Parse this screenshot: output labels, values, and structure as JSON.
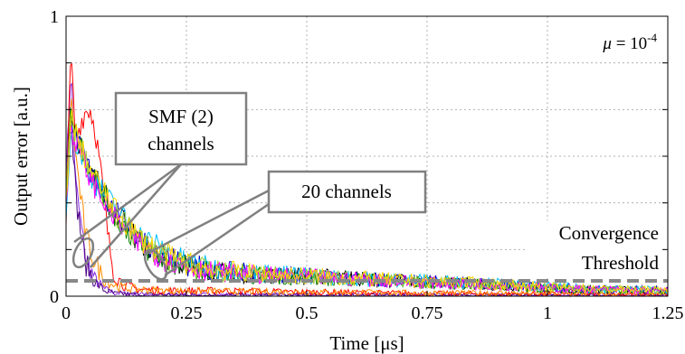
{
  "chart_data": {
    "type": "line",
    "xlabel": "Time [μs]",
    "ylabel": "Output error [a.u.]",
    "xlim": [
      0,
      1.25
    ],
    "ylim": [
      0,
      1
    ],
    "x_ticks": [
      {
        "value": 0,
        "label": "0"
      },
      {
        "value": 0.25,
        "label": "0.25"
      },
      {
        "value": 0.5,
        "label": "0.5"
      },
      {
        "value": 0.75,
        "label": "0.75"
      },
      {
        "value": 1,
        "label": "1"
      },
      {
        "value": 1.25,
        "label": "1.25"
      }
    ],
    "y_ticks": [
      {
        "value": 0,
        "label": "0"
      },
      {
        "value": 1,
        "label": "1"
      }
    ],
    "grid": true,
    "threshold": {
      "value": 0.055,
      "label_line1": "Convergence",
      "label_line2": "Threshold",
      "color": "#888888"
    },
    "mu_label": {
      "symbol": "μ",
      "equals": " = 10",
      "exponent": "-4"
    },
    "annotations": [
      {
        "line1": "SMF (2)",
        "line2": "channels"
      },
      {
        "line1": "20 channels",
        "line2": ""
      }
    ],
    "series_groups": [
      {
        "group": "SMF (2) channels",
        "series": [
          {
            "color": "#8a2be2",
            "x": [
              0,
              0.01,
              0.02,
              0.04,
              0.06,
              0.08,
              0.1,
              0.14,
              0.2,
              0.3,
              0.5,
              0.75,
              1.0,
              1.25
            ],
            "y": [
              0.42,
              0.82,
              0.4,
              0.14,
              0.06,
              0.025,
              0.012,
              0.008,
              0.006,
              0.005,
              0.004,
              0.004,
              0.003,
              0.003
            ]
          },
          {
            "color": "#4b0082",
            "x": [
              0,
              0.01,
              0.02,
              0.04,
              0.06,
              0.08,
              0.1,
              0.14,
              0.2,
              0.3,
              0.5,
              0.75,
              1.0,
              1.25
            ],
            "y": [
              0.35,
              0.7,
              0.36,
              0.12,
              0.05,
              0.02,
              0.01,
              0.007,
              0.005,
              0.004,
              0.004,
              0.003,
              0.003,
              0.003
            ]
          }
        ]
      },
      {
        "group": "20 channels",
        "series": [
          {
            "color": "#ff0000",
            "x": [
              0,
              0.01,
              0.02,
              0.03,
              0.04,
              0.05,
              0.06,
              0.07,
              0.08,
              0.09,
              0.1,
              0.12,
              0.15,
              0.2,
              0.3,
              0.5,
              0.75,
              1.0,
              1.25
            ],
            "y": [
              0.3,
              0.87,
              0.55,
              0.62,
              0.66,
              0.67,
              0.6,
              0.48,
              0.32,
              0.18,
              0.08,
              0.04,
              0.025,
              0.02,
              0.02,
              0.015,
              0.01,
              0.008,
              0.006
            ]
          },
          {
            "color": "#ff8c00",
            "x": [
              0,
              0.01,
              0.02,
              0.04,
              0.06,
              0.08,
              0.1,
              0.12,
              0.15,
              0.2,
              0.3,
              0.5,
              0.75,
              1.0,
              1.25
            ],
            "y": [
              0.35,
              0.72,
              0.5,
              0.22,
              0.12,
              0.06,
              0.04,
              0.03,
              0.025,
              0.02,
              0.018,
              0.015,
              0.012,
              0.01,
              0.008
            ]
          },
          {
            "color": "#000000",
            "x": [
              0,
              0.01,
              0.02,
              0.05,
              0.1,
              0.15,
              0.2,
              0.25,
              0.3,
              0.4,
              0.5,
              0.6,
              0.75,
              0.9,
              1.0,
              1.1,
              1.25
            ],
            "y": [
              0.35,
              0.66,
              0.58,
              0.45,
              0.3,
              0.2,
              0.14,
              0.11,
              0.09,
              0.075,
              0.07,
              0.065,
              0.05,
              0.04,
              0.03,
              0.025,
              0.02
            ]
          },
          {
            "color": "#0000cd",
            "x": [
              0,
              0.01,
              0.02,
              0.05,
              0.1,
              0.15,
              0.2,
              0.25,
              0.3,
              0.4,
              0.5,
              0.6,
              0.75,
              0.9,
              1.0,
              1.1,
              1.25
            ],
            "y": [
              0.33,
              0.63,
              0.56,
              0.44,
              0.31,
              0.21,
              0.15,
              0.115,
              0.095,
              0.08,
              0.072,
              0.06,
              0.052,
              0.042,
              0.032,
              0.025,
              0.022
            ]
          },
          {
            "color": "#008000",
            "x": [
              0,
              0.01,
              0.02,
              0.05,
              0.1,
              0.15,
              0.2,
              0.25,
              0.3,
              0.4,
              0.5,
              0.6,
              0.75,
              0.9,
              1.0,
              1.1,
              1.25
            ],
            "y": [
              0.34,
              0.68,
              0.6,
              0.46,
              0.29,
              0.19,
              0.13,
              0.105,
              0.088,
              0.074,
              0.068,
              0.06,
              0.048,
              0.038,
              0.028,
              0.022,
              0.018
            ]
          },
          {
            "color": "#00bfff",
            "x": [
              0,
              0.01,
              0.02,
              0.05,
              0.1,
              0.15,
              0.2,
              0.25,
              0.3,
              0.4,
              0.5,
              0.6,
              0.75,
              0.9,
              1.0,
              1.1,
              1.25
            ],
            "y": [
              0.32,
              0.6,
              0.55,
              0.43,
              0.32,
              0.22,
              0.17,
              0.12,
              0.1,
              0.082,
              0.075,
              0.062,
              0.055,
              0.044,
              0.034,
              0.027,
              0.023
            ]
          },
          {
            "color": "#9acd32",
            "x": [
              0,
              0.01,
              0.02,
              0.05,
              0.1,
              0.15,
              0.2,
              0.25,
              0.3,
              0.4,
              0.5,
              0.6,
              0.75,
              0.9,
              1.0,
              1.1,
              1.25
            ],
            "y": [
              0.33,
              0.64,
              0.57,
              0.44,
              0.3,
              0.2,
              0.14,
              0.112,
              0.092,
              0.078,
              0.07,
              0.063,
              0.05,
              0.041,
              0.031,
              0.024,
              0.02
            ]
          },
          {
            "color": "#ff00ff",
            "x": [
              0,
              0.01,
              0.02,
              0.05,
              0.1,
              0.15,
              0.2,
              0.25,
              0.3,
              0.4,
              0.5,
              0.6,
              0.75,
              0.9,
              1.0,
              1.1,
              1.25
            ],
            "y": [
              0.31,
              0.62,
              0.55,
              0.42,
              0.28,
              0.19,
              0.135,
              0.108,
              0.09,
              0.076,
              0.069,
              0.061,
              0.049,
              0.04,
              0.03,
              0.024,
              0.019
            ]
          },
          {
            "color": "#ffd700",
            "x": [
              0,
              0.01,
              0.02,
              0.05,
              0.1,
              0.15,
              0.2,
              0.25,
              0.3,
              0.4,
              0.5,
              0.6,
              0.75,
              0.9,
              1.0,
              1.1,
              1.25
            ],
            "y": [
              0.34,
              0.65,
              0.58,
              0.45,
              0.31,
              0.21,
              0.15,
              0.118,
              0.096,
              0.081,
              0.073,
              0.064,
              0.053,
              0.043,
              0.033,
              0.026,
              0.021
            ]
          }
        ]
      }
    ]
  }
}
